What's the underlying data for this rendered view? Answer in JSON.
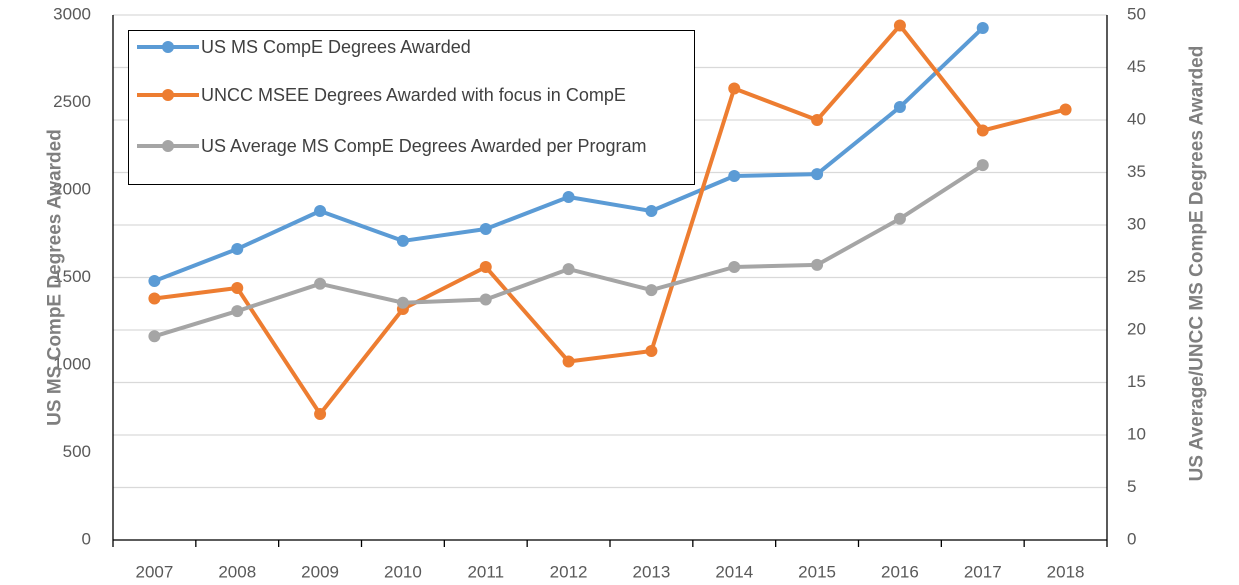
{
  "chart_data": {
    "type": "line",
    "categories": [
      "2007",
      "2008",
      "2009",
      "2010",
      "2011",
      "2012",
      "2013",
      "2014",
      "2015",
      "2016",
      "2017",
      "2018"
    ],
    "series": [
      {
        "name": "US MS CompE Degrees Awarded",
        "color": "#5b9bd5",
        "values": [
          1480,
          1663,
          1880,
          1709,
          1777,
          1960,
          1880,
          2080,
          2091,
          2474,
          2926,
          null
        ]
      },
      {
        "name": "UNCC MSEE Degrees Awarded with focus in CompE",
        "color": "#ed7d31",
        "axis": "y2",
        "values": [
          23,
          24,
          12,
          22,
          26,
          17,
          18,
          43,
          40,
          49,
          39,
          41
        ]
      },
      {
        "name": "US Average MS CompE Degrees Awarded per Program",
        "color": "#a5a5a5",
        "axis": "y2",
        "values": [
          19.4,
          21.8,
          24.4,
          22.6,
          22.9,
          25.8,
          23.8,
          26,
          26.2,
          30.6,
          35.7,
          null
        ]
      }
    ],
    "ylabel": "US MS CompE Degrees Awarded",
    "y2label": "US Average/UNCC MS CompE Degrees Awarded",
    "ylim": [
      0,
      3000
    ],
    "yticks": [
      0,
      500,
      1000,
      1500,
      2000,
      2500,
      3000
    ],
    "y2lim": [
      0,
      50
    ],
    "y2ticks": [
      0,
      5,
      10,
      15,
      20,
      25,
      30,
      35,
      40,
      45,
      50
    ],
    "grid": true
  }
}
